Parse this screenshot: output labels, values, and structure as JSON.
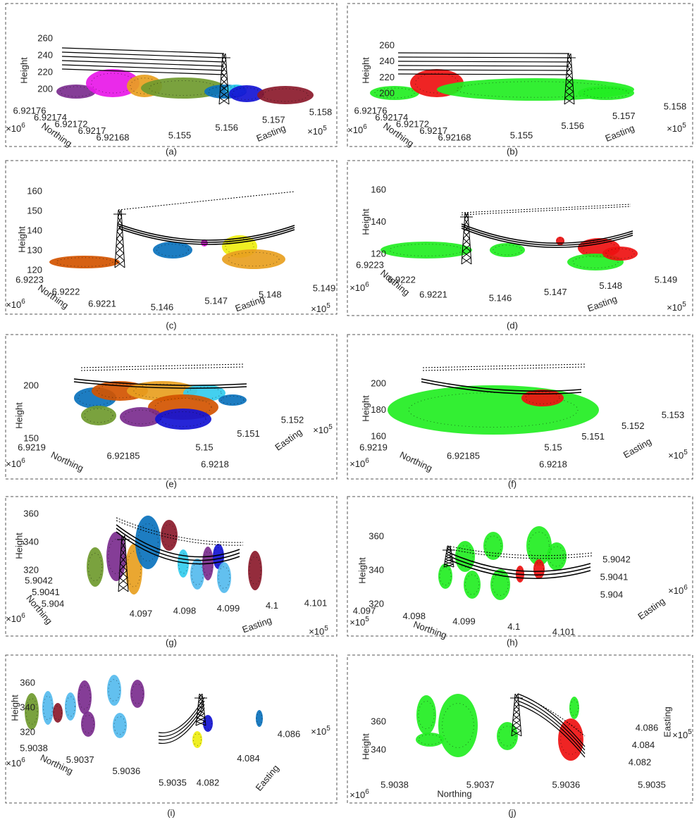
{
  "panels": [
    {
      "caption": "(a)",
      "height": {
        "label": "Height",
        "ticks": [
          "260",
          "240",
          "220",
          "200"
        ]
      },
      "axis1": {
        "label": "Northing",
        "ticks": [
          "6.92176",
          "6.92174",
          "6.92172",
          "6.9217",
          "6.92168"
        ],
        "multiplier": {
          "base": "×10",
          "exp": "6"
        }
      },
      "axis2": {
        "label": "Easting",
        "ticks": [
          "5.155",
          "5.156",
          "5.157",
          "5.158"
        ],
        "multiplier": {
          "base": "×10",
          "exp": "5"
        }
      }
    },
    {
      "caption": "(b)",
      "height": {
        "label": "Height",
        "ticks": [
          "260",
          "240",
          "220",
          "200"
        ]
      },
      "axis1": {
        "label": "Northing",
        "ticks": [
          "6.92176",
          "6.92174",
          "6.92172",
          "6.9217",
          "6.92168"
        ],
        "multiplier": {
          "base": "×10",
          "exp": "6"
        }
      },
      "axis2": {
        "label": "Easting",
        "ticks": [
          "5.155",
          "5.156",
          "5.157",
          "5.158"
        ],
        "multiplier": {
          "base": "×10",
          "exp": "5"
        }
      }
    },
    {
      "caption": "(c)",
      "height": {
        "label": "Height",
        "ticks": [
          "160",
          "150",
          "140",
          "130",
          "120"
        ]
      },
      "axis1": {
        "label": "Northing",
        "ticks": [
          "6.9223",
          "6.9222",
          "6.9221"
        ],
        "multiplier": {
          "base": "×10",
          "exp": "6"
        }
      },
      "axis2": {
        "label": "Easting",
        "ticks": [
          "5.146",
          "5.147",
          "5.148",
          "5.149"
        ],
        "multiplier": {
          "base": "×10",
          "exp": "5"
        }
      }
    },
    {
      "caption": "(d)",
      "height": {
        "label": "Height",
        "ticks": [
          "160",
          "140",
          "120"
        ]
      },
      "axis1": {
        "label": "Northing",
        "ticks": [
          "6.9223",
          "6.9222",
          "6.9221"
        ],
        "multiplier": {
          "base": "×10",
          "exp": "6"
        }
      },
      "axis2": {
        "label": "Easting",
        "ticks": [
          "5.146",
          "5.147",
          "5.148",
          "5.149"
        ],
        "multiplier": {
          "base": "×10",
          "exp": "5"
        }
      }
    },
    {
      "caption": "(e)",
      "height": {
        "label": "Height",
        "ticks": [
          "200",
          "150"
        ]
      },
      "axis1": {
        "label": "Northing",
        "ticks": [
          "6.9219",
          "6.92185",
          "6.9218"
        ],
        "multiplier": {
          "base": "×10",
          "exp": "6"
        }
      },
      "axis2": {
        "label": "Easting",
        "ticks": [
          "5.15",
          "5.151",
          "5.152"
        ],
        "multiplier": {
          "base": "×10",
          "exp": "5"
        }
      }
    },
    {
      "caption": "(f)",
      "height": {
        "label": "Height",
        "ticks": [
          "200",
          "180",
          "160"
        ]
      },
      "axis1": {
        "label": "Northing",
        "ticks": [
          "6.9219",
          "6.92185",
          "6.9218"
        ],
        "multiplier": {
          "base": "×10",
          "exp": "6"
        }
      },
      "axis2": {
        "label": "Easting",
        "ticks": [
          "5.15",
          "5.151",
          "5.152",
          "5.153"
        ],
        "multiplier": {
          "base": "×10",
          "exp": "5"
        }
      }
    },
    {
      "caption": "(g)",
      "height": {
        "label": "Height",
        "ticks": [
          "360",
          "340",
          "320"
        ]
      },
      "axis1": {
        "label": "Northing",
        "ticks": [
          "5.9042",
          "5.9041",
          "5.904"
        ],
        "multiplier": {
          "base": "×10",
          "exp": "6"
        }
      },
      "axis2": {
        "label": "Easting",
        "ticks": [
          "4.097",
          "4.098",
          "4.099",
          "4.1",
          "4.101"
        ],
        "multiplier": {
          "base": "×10",
          "exp": "5"
        }
      }
    },
    {
      "caption": "(h)",
      "height": {
        "label": "Height",
        "ticks": [
          "360",
          "340",
          "320"
        ]
      },
      "axis1": {
        "label": "Northing",
        "ticks": [
          "4.097",
          "4.098",
          "4.099",
          "4.1",
          "4.101"
        ],
        "multiplier": {
          "base": "×10",
          "exp": "5"
        }
      },
      "axis2": {
        "label": "Easting",
        "ticks": [
          "5.9042",
          "5.9041",
          "5.904"
        ],
        "multiplier": {
          "base": "×10",
          "exp": "6"
        }
      }
    },
    {
      "caption": "(i)",
      "height": {
        "label": "Height",
        "ticks": [
          "360",
          "340",
          "320"
        ]
      },
      "axis1": {
        "label": "Northing",
        "ticks": [
          "5.9038",
          "5.9037",
          "5.9036",
          "5.9035"
        ],
        "multiplier": {
          "base": "×10",
          "exp": "6"
        }
      },
      "axis2": {
        "label": "Easting",
        "ticks": [
          "4.082",
          "4.084",
          "4.086"
        ],
        "multiplier": {
          "base": "×10",
          "exp": "5"
        }
      }
    },
    {
      "caption": "(j)",
      "height": {
        "label": "Height",
        "ticks": [
          "360",
          "340"
        ]
      },
      "axis1": {
        "label": "Northing",
        "ticks": [
          "5.9038",
          "5.9037",
          "5.9036",
          "5.9035"
        ],
        "multiplier": {
          "base": "×10",
          "exp": "6"
        }
      },
      "axis2": {
        "label": "Easting",
        "ticks": [
          "4.086",
          "4.084",
          "4.082"
        ],
        "multiplier": {
          "base": "×10",
          "exp": "5"
        }
      }
    }
  ]
}
